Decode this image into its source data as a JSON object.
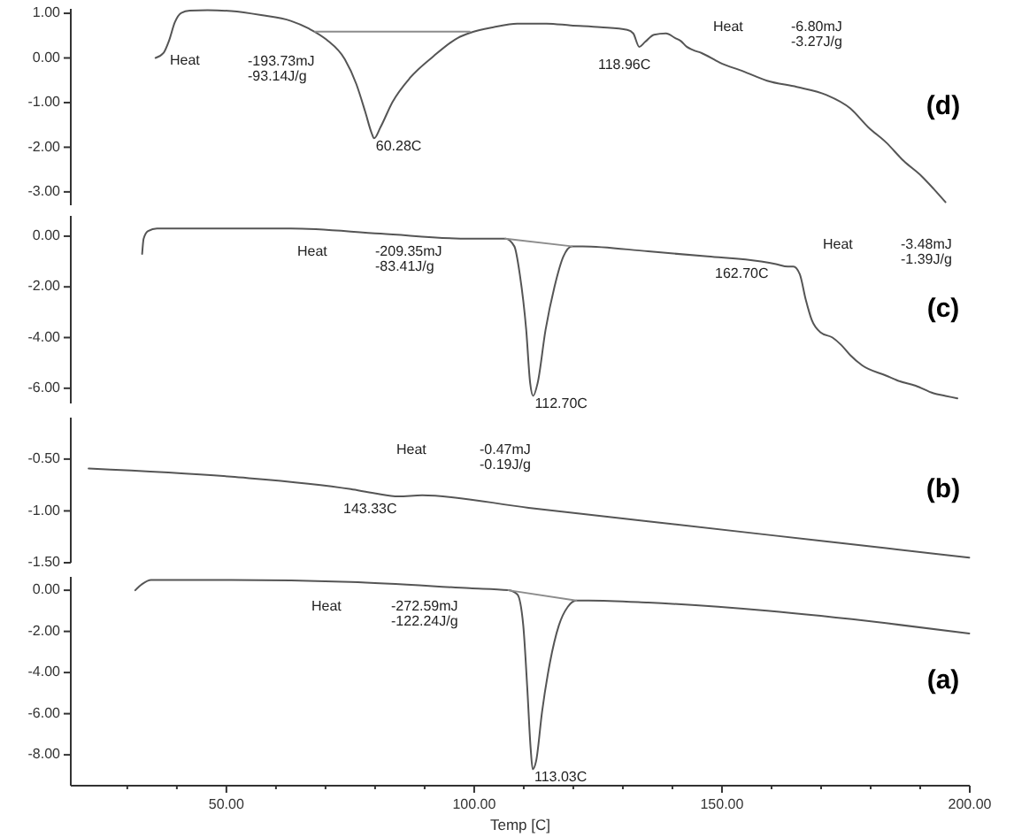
{
  "chart_data": [
    {
      "type": "line",
      "title": "(d)",
      "xlim": [
        18.6,
        200
      ],
      "ylim": [
        -3.3,
        1.1
      ],
      "tick_labels": "y",
      "yticks": [
        {
          "value": 1,
          "label": "1.00"
        },
        {
          "value": 0,
          "label": "0.00"
        },
        {
          "value": -1,
          "label": "-1.00"
        },
        {
          "value": -2,
          "label": "-2.00"
        },
        {
          "value": -3,
          "label": "-3.00"
        }
      ],
      "series": [
        {
          "color": "#555555",
          "x": [
            35.7,
            37.3,
            38.4,
            39.6,
            40.9,
            42.6,
            46.2,
            51.0,
            57.0,
            63.0,
            66.6,
            70.2,
            73.9,
            76.2,
            78.0,
            79.3,
            79.8,
            81.1,
            83.5,
            87.1,
            91.8,
            96.7,
            99.1,
            103.9,
            108.7,
            114.6,
            119.5,
            125.5,
            130.9,
            132.1,
            133.3,
            134.5,
            136.3,
            138.7,
            140.5,
            141.7,
            142.9,
            144.1,
            145.9,
            149.5,
            154.3,
            159.1,
            165.1,
            171.1,
            175.9,
            179.5,
            183.1,
            186.7,
            190.3,
            192.7,
            195.1
          ],
          "values": [
            0.0,
            0.11,
            0.38,
            0.8,
            1.01,
            1.06,
            1.07,
            1.05,
            0.96,
            0.83,
            0.66,
            0.41,
            -0.03,
            -0.58,
            -1.2,
            -1.68,
            -1.8,
            -1.55,
            -0.99,
            -0.44,
            0.04,
            0.45,
            0.56,
            0.69,
            0.77,
            0.77,
            0.73,
            0.69,
            0.63,
            0.55,
            0.25,
            0.36,
            0.52,
            0.55,
            0.45,
            0.38,
            0.25,
            0.18,
            0.11,
            -0.1,
            -0.3,
            -0.51,
            -0.65,
            -0.83,
            -1.13,
            -1.55,
            -1.89,
            -2.31,
            -2.65,
            -2.93,
            -3.23
          ]
        },
        {
          "color": "#8c8c8c",
          "x": [
            67.9,
            99.1
          ],
          "values": [
            0.59,
            0.59
          ]
        }
      ],
      "annotations": [
        "Heat",
        "-193.73mJ",
        "-93.14J/g",
        {
          "text": "60.28C",
          "x": 79.8,
          "y": -1.8
        },
        "118.96C",
        "Heat",
        "-6.80mJ",
        "-3.27J/g"
      ]
    },
    {
      "type": "line",
      "title": "(c)",
      "xlim": [
        18.6,
        200
      ],
      "ylim": [
        -6.6,
        0.8
      ],
      "tick_labels": "y",
      "yticks": [
        {
          "value": 0,
          "label": "0.00"
        },
        {
          "value": -2,
          "label": "-2.00"
        },
        {
          "value": -4,
          "label": "-4.00"
        },
        {
          "value": -6,
          "label": "-6.00"
        }
      ],
      "series": [
        {
          "color": "#555555",
          "x": [
            33.0,
            33.3,
            34.2,
            36.0,
            45.1,
            63.0,
            81.1,
            99.1,
            106.3,
            108.1,
            109.2,
            110.5,
            111.3,
            111.9,
            112.8,
            114.4,
            116.2,
            118.0,
            119.7,
            121.9,
            135.1,
            147.1,
            157.9,
            160.9,
            163.3,
            164.4,
            165.7,
            166.9,
            168.1,
            169.9,
            172.3,
            174.1,
            175.9,
            178.3,
            183.1,
            185.5,
            189.1,
            192.7,
            195.1,
            197.5
          ],
          "values": [
            -0.7,
            -0.1,
            0.2,
            0.3,
            0.3,
            0.3,
            0.1,
            -0.1,
            -0.1,
            -0.4,
            -1.5,
            -3.7,
            -5.8,
            -6.3,
            -5.8,
            -3.7,
            -2.0,
            -0.8,
            -0.4,
            -0.4,
            -0.6,
            -0.8,
            -1.0,
            -1.1,
            -1.2,
            -1.2,
            -1.5,
            -2.5,
            -3.3,
            -3.8,
            -4.0,
            -4.3,
            -4.7,
            -5.1,
            -5.5,
            -5.7,
            -5.9,
            -6.2,
            -6.3,
            -6.4
          ]
        },
        {
          "color": "#8c8c8c",
          "x": [
            106.3,
            119.7
          ],
          "values": [
            -0.1,
            -0.4
          ]
        }
      ],
      "annotations": [
        "Heat",
        "-209.35mJ",
        "-83.41J/g",
        {
          "text": "112.70C",
          "x": 111.9,
          "y": -6.3
        },
        "162.70C",
        "Heat",
        "-3.48mJ",
        "-1.39J/g"
      ]
    },
    {
      "type": "line",
      "title": "(b)",
      "xlim": [
        18.6,
        200
      ],
      "ylim": [
        -1.5,
        -0.1
      ],
      "tick_labels": "y",
      "yticks": [
        {
          "value": -0.5,
          "label": "-0.50"
        },
        {
          "value": -1,
          "label": "-1.00"
        },
        {
          "value": -1.5,
          "label": "-1.50"
        }
      ],
      "series": [
        {
          "color": "#555555",
          "x": [
            22.2,
            51.0,
            75.1,
            79.9,
            84.7,
            89.5,
            111.0,
            135.1,
            159.1,
            183.1,
            199.9
          ],
          "values": [
            -0.59,
            -0.67,
            -0.79,
            -0.83,
            -0.86,
            -0.85,
            -0.97,
            -1.1,
            -1.23,
            -1.36,
            -1.45
          ]
        }
      ],
      "annotations": [
        "Heat",
        "-0.47mJ",
        "-0.19J/g",
        "143.33C"
      ]
    },
    {
      "type": "line",
      "title": "(a)",
      "xlabel": "Temp [C]",
      "xlim": [
        18.6,
        200
      ],
      "ylim": [
        -9.5,
        0.65
      ],
      "xticks": [
        {
          "value": 30,
          "label": null
        },
        {
          "value": 40,
          "label": null
        },
        {
          "value": 50,
          "label": "50.00"
        },
        {
          "value": 60,
          "label": null
        },
        {
          "value": 70,
          "label": null
        },
        {
          "value": 80,
          "label": null
        },
        {
          "value": 90,
          "label": null
        },
        {
          "value": 100,
          "label": "100.00"
        },
        {
          "value": 110,
          "label": null
        },
        {
          "value": 120,
          "label": null
        },
        {
          "value": 130,
          "label": null
        },
        {
          "value": 140,
          "label": null
        },
        {
          "value": 150,
          "label": "150.00"
        },
        {
          "value": 160,
          "label": null
        },
        {
          "value": 170,
          "label": null
        },
        {
          "value": 180,
          "label": null
        },
        {
          "value": 190,
          "label": null
        },
        {
          "value": 200,
          "label": "200.00"
        }
      ],
      "yticks": [
        {
          "value": 0,
          "label": "0.00"
        },
        {
          "value": -2,
          "label": "-2.00"
        },
        {
          "value": -4,
          "label": "-4.00"
        },
        {
          "value": -6,
          "label": "-6.00"
        },
        {
          "value": -8,
          "label": "-8.00"
        }
      ],
      "series": [
        {
          "color": "#555555",
          "x": [
            31.6,
            33.0,
            34.8,
            39.1,
            51.0,
            75.1,
            99.1,
            106.9,
            108.7,
            109.9,
            110.7,
            111.4,
            111.8,
            112.5,
            113.7,
            115.3,
            117.1,
            118.9,
            120.6,
            123.1,
            135.1,
            159.1,
            183.1,
            199.9
          ],
          "values": [
            0.0,
            0.3,
            0.5,
            0.5,
            0.5,
            0.4,
            0.1,
            0.0,
            -0.2,
            -1.7,
            -4.7,
            -7.7,
            -8.7,
            -8.3,
            -5.9,
            -3.5,
            -1.7,
            -0.8,
            -0.5,
            -0.5,
            -0.6,
            -1.0,
            -1.6,
            -2.1
          ]
        },
        {
          "color": "#8c8c8c",
          "x": [
            106.9,
            120.6
          ],
          "values": [
            0.0,
            -0.5
          ]
        }
      ],
      "annotations": [
        "Heat",
        "-272.59mJ",
        "-122.24J/g",
        {
          "text": "113.03C",
          "x": 111.8,
          "y": -8.7
        }
      ]
    }
  ]
}
